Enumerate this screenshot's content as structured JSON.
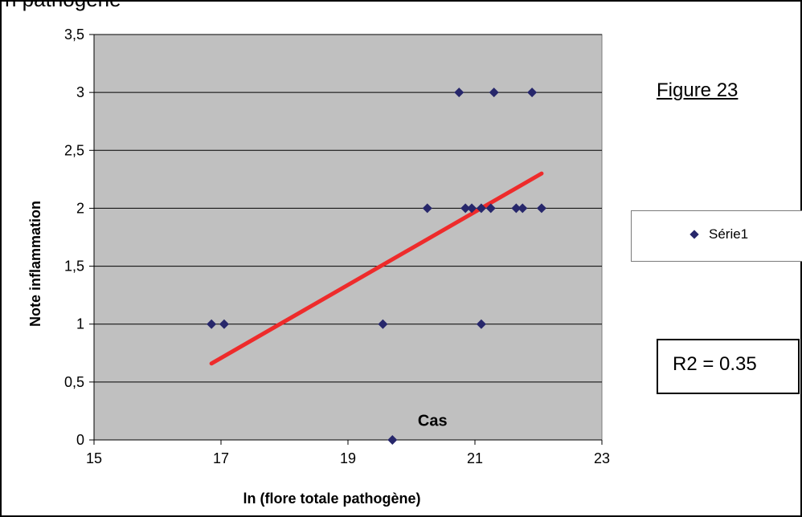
{
  "header": {
    "partial_text": "n  pathogène"
  },
  "figure_label": "Figure 23",
  "legend": {
    "entries": [
      "Série1"
    ]
  },
  "r2_label": "R2 = 0.35",
  "colors": {
    "plot_background": "#c0c0c0",
    "marker": "#27276b",
    "trendline": "#ee2b2b",
    "gridline": "#000000"
  },
  "chart_data": {
    "type": "scatter",
    "title": "",
    "xlabel": "ln (flore totale pathogène)",
    "ylabel": "Note inflammation",
    "xlim": [
      15,
      23
    ],
    "ylim": [
      0,
      3.5
    ],
    "x_ticks": [
      "15",
      "17",
      "19",
      "21",
      "23"
    ],
    "y_ticks": [
      "0",
      "0,5",
      "1",
      "1,5",
      "2",
      "2,5",
      "3",
      "3,5"
    ],
    "grid": {
      "horizontal": true,
      "vertical": false
    },
    "legend_position": "right",
    "series": [
      {
        "name": "Série1",
        "points": [
          [
            16.85,
            1
          ],
          [
            17.05,
            1
          ],
          [
            19.55,
            1
          ],
          [
            21.1,
            1
          ],
          [
            20.25,
            2
          ],
          [
            20.85,
            2
          ],
          [
            20.95,
            2
          ],
          [
            21.1,
            2
          ],
          [
            21.25,
            2
          ],
          [
            21.65,
            2
          ],
          [
            21.75,
            2
          ],
          [
            22.05,
            2
          ],
          [
            20.75,
            3
          ],
          [
            21.3,
            3
          ],
          [
            21.9,
            3
          ],
          [
            19.7,
            0
          ]
        ]
      }
    ],
    "trendline": {
      "from": [
        16.85,
        0.66
      ],
      "to": [
        22.05,
        2.3
      ]
    },
    "annotation": {
      "text": "Cas",
      "x": 20.1,
      "y": 0.12
    }
  }
}
